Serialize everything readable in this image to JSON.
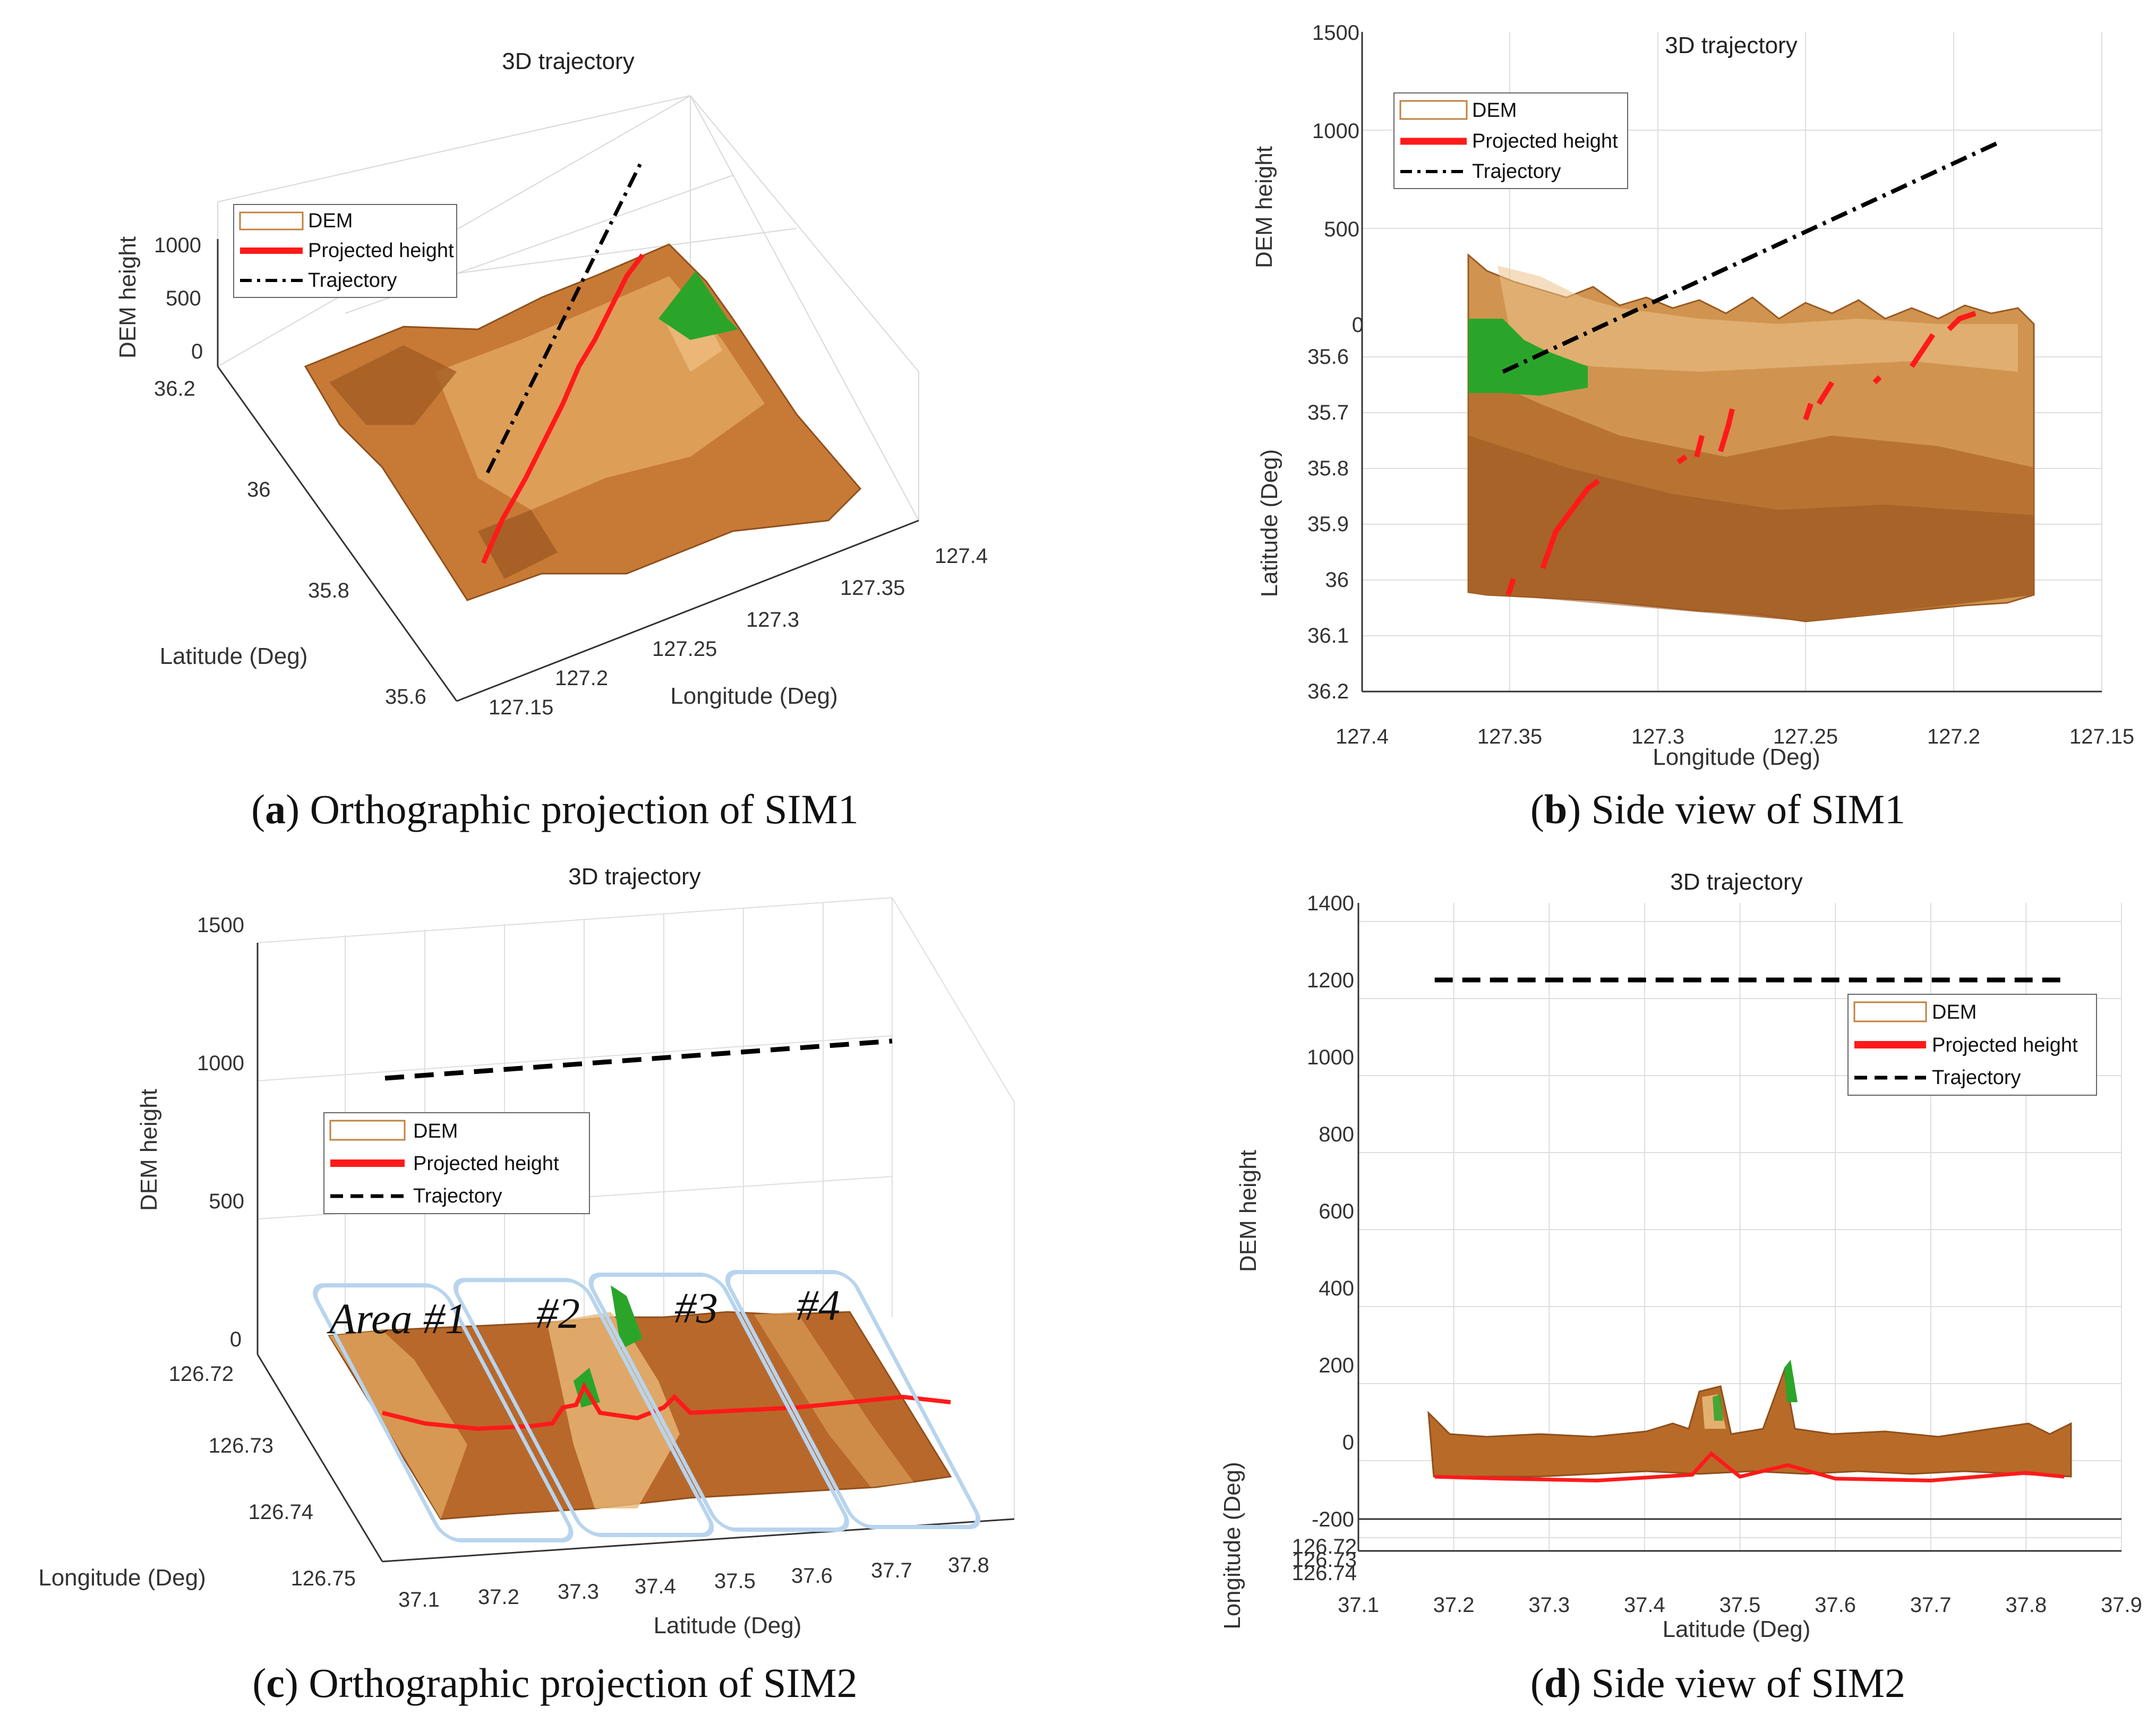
{
  "colors": {
    "dem": "#b86a28",
    "dem_light": "#e0a860",
    "projected": "#ff1a1a",
    "trajectory": "#000000",
    "peak": "#22aa22",
    "area_box": "#b8d4ee"
  },
  "panels": [
    {
      "caption_letter": "a",
      "caption_rest": ") Orthographic projection of SIM1",
      "title": "3D trajectory",
      "xlabel": "Longitude (Deg)",
      "ylabel": "Latitude (Deg)",
      "zlabel": "DEM height",
      "x_ticks": [
        "127.15",
        "127.2",
        "127.25",
        "127.3",
        "127.35",
        "127.4"
      ],
      "y_ticks": [
        "35.6",
        "35.8",
        "36",
        "36.2"
      ],
      "z_ticks": [
        "0",
        "500",
        "1000"
      ],
      "legend": [
        "DEM",
        "Projected height",
        "Trajectory"
      ]
    },
    {
      "caption_letter": "b",
      "caption_rest": ") Side view of SIM1",
      "title": "3D trajectory",
      "xlabel": "Longitude (Deg)",
      "ylabel": "Latitude (Deg)",
      "zlabel": "DEM height",
      "x_ticks": [
        "127.4",
        "127.35",
        "127.3",
        "127.25",
        "127.2",
        "127.15"
      ],
      "y_ticks": [
        "35.6",
        "35.7",
        "35.8",
        "35.9",
        "36",
        "36.1",
        "36.2"
      ],
      "z_ticks": [
        "0",
        "500",
        "1000",
        "1500"
      ],
      "legend": [
        "DEM",
        "Projected height",
        "Trajectory"
      ]
    },
    {
      "caption_letter": "c",
      "caption_rest": ") Orthographic projection of SIM2",
      "title": "3D trajectory",
      "xlabel": "Latitude (Deg)",
      "ylabel": "Longitude (Deg)",
      "zlabel": "DEM height",
      "x_ticks": [
        "37.1",
        "37.2",
        "37.3",
        "37.4",
        "37.5",
        "37.6",
        "37.7",
        "37.8"
      ],
      "y_ticks": [
        "126.72",
        "126.73",
        "126.74",
        "126.75"
      ],
      "z_ticks": [
        "0",
        "500",
        "1000",
        "1500"
      ],
      "legend": [
        "DEM",
        "Projected height",
        "Trajectory"
      ],
      "areas": [
        "Area #1",
        "#2",
        "#3",
        "#4"
      ]
    },
    {
      "caption_letter": "d",
      "caption_rest": ") Side view of SIM2",
      "title": "3D trajectory",
      "xlabel": "Latitude (Deg)",
      "ylabel": "Longitude (Deg)",
      "zlabel": "DEM height",
      "x_ticks": [
        "37.1",
        "37.2",
        "37.3",
        "37.4",
        "37.5",
        "37.6",
        "37.7",
        "37.8",
        "37.9"
      ],
      "y_ticks": [
        "126.72",
        "126.73",
        "126.74"
      ],
      "z_ticks": [
        "-200",
        "0",
        "200",
        "400",
        "600",
        "800",
        "1000",
        "1200",
        "1400"
      ],
      "legend": [
        "DEM",
        "Projected height",
        "Trajectory"
      ]
    }
  ],
  "chart_data": [
    {
      "type": "surface3d",
      "title": "3D trajectory",
      "xlabel": "Longitude (Deg)",
      "ylabel": "Latitude (Deg)",
      "zlabel": "DEM height",
      "xlim": [
        127.15,
        127.4
      ],
      "ylim": [
        35.6,
        36.2
      ],
      "zlim": [
        0,
        1000
      ],
      "series": [
        {
          "name": "DEM",
          "kind": "surface"
        },
        {
          "name": "Projected height",
          "kind": "line"
        },
        {
          "name": "Trajectory",
          "kind": "line",
          "style": "dash-dot"
        }
      ]
    },
    {
      "type": "surface3d",
      "title": "3D trajectory",
      "xlabel": "Longitude (Deg)",
      "ylabel": "Latitude (Deg)",
      "zlabel": "DEM height",
      "xlim": [
        127.4,
        127.15
      ],
      "ylim": [
        35.6,
        36.2
      ],
      "zlim": [
        0,
        1500
      ],
      "series": [
        {
          "name": "DEM",
          "kind": "surface"
        },
        {
          "name": "Projected height",
          "kind": "line"
        },
        {
          "name": "Trajectory",
          "kind": "line",
          "style": "dash-dot",
          "x": [
            127.35,
            127.19
          ],
          "z": [
            0,
            950
          ]
        }
      ]
    },
    {
      "type": "surface3d",
      "title": "3D trajectory",
      "xlabel": "Latitude (Deg)",
      "ylabel": "Longitude (Deg)",
      "zlabel": "DEM height",
      "xlim": [
        37.1,
        37.8
      ],
      "ylim": [
        126.72,
        126.75
      ],
      "zlim": [
        0,
        1500
      ],
      "series": [
        {
          "name": "DEM",
          "kind": "surface"
        },
        {
          "name": "Projected height",
          "kind": "line"
        },
        {
          "name": "Trajectory",
          "kind": "line",
          "style": "dashed",
          "z": [
            1000,
            1100
          ]
        }
      ]
    },
    {
      "type": "line",
      "title": "3D trajectory",
      "xlabel": "Latitude (Deg)",
      "ylabel": "Longitude (Deg)",
      "zlabel": "DEM height",
      "xlim": [
        37.1,
        37.9
      ],
      "zlim": [
        -200,
        1400
      ],
      "series": [
        {
          "name": "Trajectory",
          "x": [
            37.18,
            37.84
          ],
          "z": [
            1200,
            1200
          ]
        },
        {
          "name": "Projected height",
          "x": [
            37.18,
            37.25,
            37.35,
            37.45,
            37.47,
            37.5,
            37.55,
            37.6,
            37.7,
            37.8,
            37.84
          ],
          "z": [
            -90,
            -95,
            -100,
            -85,
            -30,
            -90,
            -60,
            -95,
            -100,
            -80,
            -90
          ]
        }
      ]
    }
  ]
}
